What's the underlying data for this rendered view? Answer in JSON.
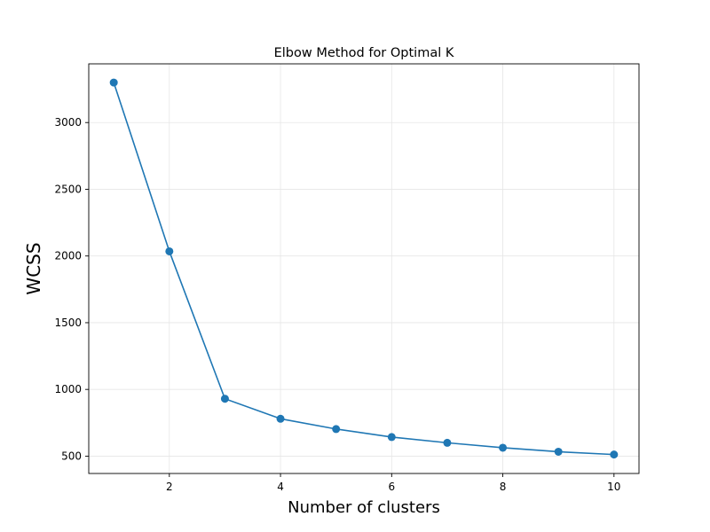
{
  "chart_data": {
    "type": "line",
    "title": "Elbow Method for Optimal K",
    "xlabel": "Number of clusters",
    "ylabel": "WCSS",
    "x": [
      1,
      2,
      3,
      4,
      5,
      6,
      7,
      8,
      9,
      10
    ],
    "series": [
      {
        "values": [
          3300,
          2035,
          930,
          780,
          703,
          643,
          600,
          563,
          533,
          512
        ],
        "color": "#1f77b4",
        "marker": "circle"
      }
    ],
    "xticks": [
      2,
      4,
      6,
      8,
      10
    ],
    "yticks": [
      500,
      1000,
      1500,
      2000,
      2500,
      3000
    ],
    "xlim": [
      0.55,
      10.45
    ],
    "ylim": [
      370,
      3440
    ],
    "grid": true,
    "legend": "none"
  }
}
